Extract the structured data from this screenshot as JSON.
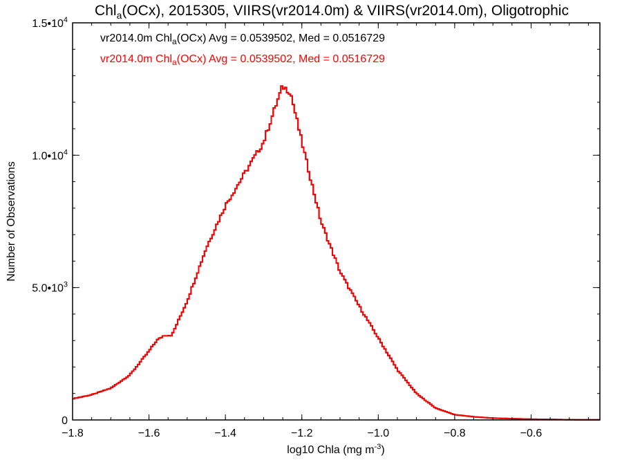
{
  "chart_data": {
    "type": "histogram",
    "title": {
      "prefix": "Chl",
      "sub": "a",
      "rest": "(OCx), 2015305, VIIRS(vr2014.0m) & VIIRS(vr2014.0m), Oligotrophic"
    },
    "xlabel": {
      "text": "log10 Chla (mg m",
      "sup": "-3",
      "close": ")"
    },
    "ylabel": "Number of Observations",
    "xlim": [
      -1.8,
      -0.42
    ],
    "ylim": [
      0,
      15000
    ],
    "xticks": [
      {
        "value": -1.8,
        "label": "−1.8"
      },
      {
        "value": -1.6,
        "label": "−1.6"
      },
      {
        "value": -1.4,
        "label": "−1.4"
      },
      {
        "value": -1.2,
        "label": "−1.2"
      },
      {
        "value": -1.0,
        "label": "−1.0"
      },
      {
        "value": -0.8,
        "label": "−0.8"
      },
      {
        "value": -0.6,
        "label": "−0.6"
      }
    ],
    "xminor_step": 0.05,
    "yticks": [
      {
        "value": 0,
        "label": "0",
        "exp": ""
      },
      {
        "value": 5000,
        "label": "5.0•10",
        "exp": "3"
      },
      {
        "value": 10000,
        "label": "1.0•10",
        "exp": "4"
      },
      {
        "value": 15000,
        "label": "1.5•10",
        "exp": "4"
      }
    ],
    "yminor_step": 1000,
    "annotations": [
      {
        "pre": "vr2014.0m Chl",
        "sub": "a",
        "post": "(OCx) Avg = 0.0539502, Med = 0.0516729",
        "color": "#000000"
      },
      {
        "pre": "vr2014.0m Chl",
        "sub": "a",
        "post": "(OCx) Avg = 0.0539502, Med = 0.0516729",
        "color": "#ff0000"
      }
    ],
    "series": [
      {
        "name": "vr2014.0m",
        "color": "#000000",
        "x": [
          -1.8,
          -1.75,
          -1.7,
          -1.65,
          -1.6,
          -1.58,
          -1.56,
          -1.54,
          -1.5,
          -1.45,
          -1.4,
          -1.35,
          -1.3,
          -1.27,
          -1.25,
          -1.23,
          -1.2,
          -1.15,
          -1.1,
          -1.05,
          -1.0,
          -0.95,
          -0.9,
          -0.85,
          -0.8,
          -0.75,
          -0.7,
          -0.6,
          -0.5,
          -0.42
        ],
        "values": [
          800,
          950,
          1200,
          1700,
          2600,
          3000,
          3200,
          3200,
          4500,
          6500,
          8100,
          9300,
          10500,
          11800,
          12600,
          12400,
          10500,
          7500,
          5600,
          4300,
          3100,
          1900,
          1000,
          450,
          200,
          120,
          70,
          30,
          10,
          5
        ]
      },
      {
        "name": "vr2014.0m",
        "color": "#ff0000",
        "x": [
          -1.8,
          -1.75,
          -1.7,
          -1.65,
          -1.6,
          -1.58,
          -1.56,
          -1.54,
          -1.5,
          -1.45,
          -1.4,
          -1.35,
          -1.3,
          -1.27,
          -1.25,
          -1.23,
          -1.2,
          -1.15,
          -1.1,
          -1.05,
          -1.0,
          -0.95,
          -0.9,
          -0.85,
          -0.8,
          -0.75,
          -0.7,
          -0.6,
          -0.5,
          -0.42
        ],
        "values": [
          800,
          950,
          1200,
          1700,
          2600,
          3000,
          3200,
          3200,
          4500,
          6500,
          8100,
          9300,
          10500,
          11800,
          12600,
          12400,
          10500,
          7500,
          5600,
          4300,
          3100,
          1900,
          1000,
          450,
          200,
          120,
          70,
          30,
          10,
          5
        ]
      }
    ]
  }
}
